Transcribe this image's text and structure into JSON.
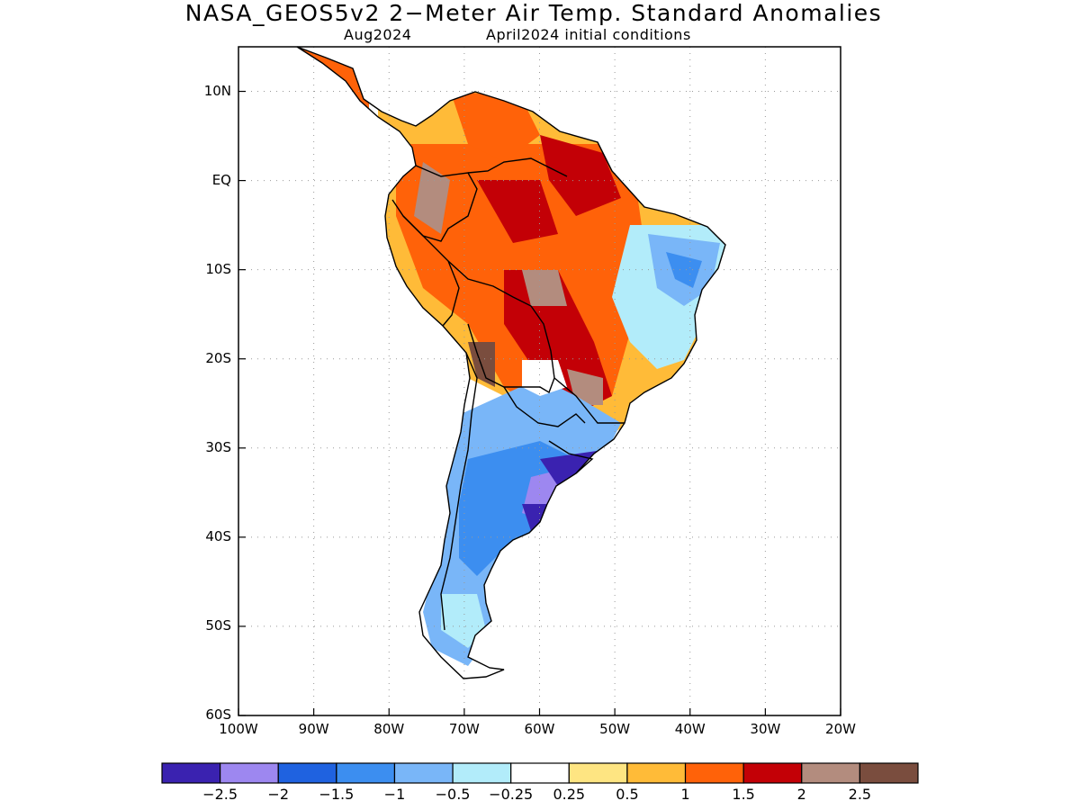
{
  "title": "NASA_GEOS5v2 2−Meter Air Temp. Standard Anomalies",
  "subtitle_valid": "Aug2024",
  "subtitle_init": "April2024 initial conditions",
  "map": {
    "lon_range": [
      -100,
      -20
    ],
    "lat_range": [
      -60,
      15
    ],
    "lat_ticks": [
      {
        "value": 10,
        "label": "10N"
      },
      {
        "value": 0,
        "label": "EQ"
      },
      {
        "value": -10,
        "label": "10S"
      },
      {
        "value": -20,
        "label": "20S"
      },
      {
        "value": -30,
        "label": "30S"
      },
      {
        "value": -40,
        "label": "40S"
      },
      {
        "value": -50,
        "label": "50S"
      },
      {
        "value": -60,
        "label": "60S"
      }
    ],
    "lon_ticks": [
      {
        "value": -100,
        "label": "100W"
      },
      {
        "value": -90,
        "label": "90W"
      },
      {
        "value": -80,
        "label": "80W"
      },
      {
        "value": -70,
        "label": "70W"
      },
      {
        "value": -60,
        "label": "60W"
      },
      {
        "value": -50,
        "label": "50W"
      },
      {
        "value": -40,
        "label": "40W"
      },
      {
        "value": -30,
        "label": "30W"
      },
      {
        "value": -20,
        "label": "20W"
      }
    ],
    "gridlines": "dotted"
  },
  "colorbar": {
    "colors": [
      "#3a22b0",
      "#9d87f0",
      "#1f62e0",
      "#3c8ef0",
      "#79b6f8",
      "#b2ecfa",
      "#ffffff",
      "#fee582",
      "#ffbb38",
      "#ff6209",
      "#c30006",
      "#b38c7e",
      "#7a4d3e"
    ],
    "labels": [
      "−2.5",
      "−2",
      "−1.5",
      "−1",
      "−0.5",
      "−0.25",
      "0.25",
      "0.5",
      "1",
      "1.5",
      "2",
      "2.5"
    ]
  }
}
